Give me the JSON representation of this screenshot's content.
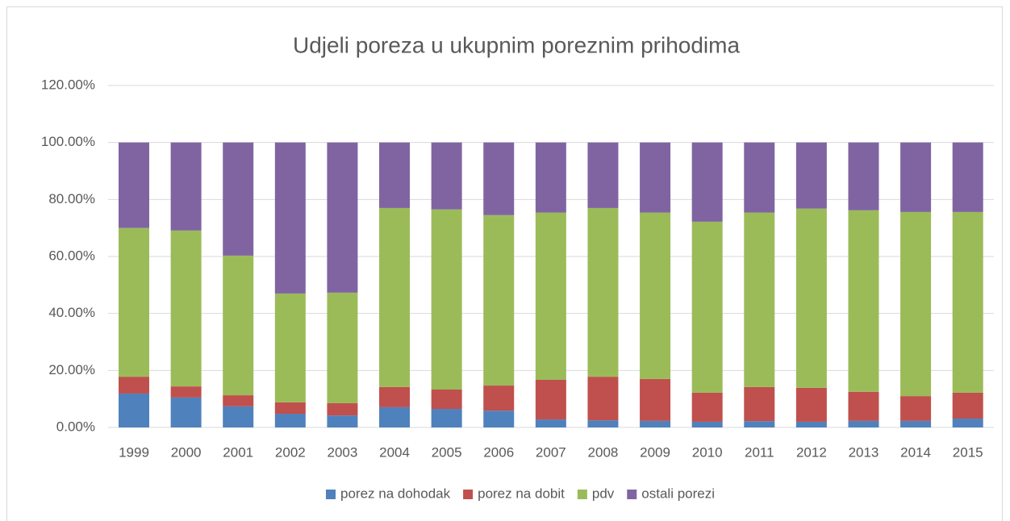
{
  "chart_data": {
    "type": "stacked_bar",
    "title": "Udjeli poreza u ukupnim poreznim prihodima",
    "categories": [
      "1999",
      "2000",
      "2001",
      "2002",
      "2003",
      "2004",
      "2005",
      "2006",
      "2007",
      "2008",
      "2009",
      "2010",
      "2011",
      "2012",
      "2013",
      "2014",
      "2015"
    ],
    "series": [
      {
        "name": "porez na dohodak",
        "color": "#4f81bd",
        "values": [
          11.9,
          10.5,
          7.4,
          4.8,
          4.2,
          7.1,
          6.5,
          5.9,
          2.8,
          2.5,
          2.3,
          2.0,
          2.2,
          2.0,
          2.3,
          2.3,
          3.1
        ]
      },
      {
        "name": "porez na dobit",
        "color": "#c0504d",
        "values": [
          5.9,
          3.9,
          3.9,
          4.0,
          4.3,
          7.1,
          6.8,
          8.8,
          13.9,
          15.3,
          14.7,
          10.2,
          12.0,
          11.9,
          10.2,
          8.7,
          9.1
        ]
      },
      {
        "name": "pdv",
        "color": "#9bbb59",
        "values": [
          52.2,
          54.7,
          49.0,
          38.2,
          38.8,
          62.8,
          63.2,
          59.8,
          58.7,
          59.2,
          58.4,
          60.0,
          61.2,
          62.9,
          63.7,
          64.6,
          63.4
        ]
      },
      {
        "name": "ostali porezi",
        "color": "#8064a2",
        "values": [
          30.0,
          30.9,
          39.7,
          53.0,
          52.7,
          23.0,
          23.5,
          25.5,
          24.6,
          23.0,
          24.6,
          27.8,
          24.6,
          23.2,
          23.8,
          24.4,
          24.4
        ]
      }
    ],
    "ylim": [
      0,
      120
    ],
    "yticks": [
      {
        "value": 0,
        "label": "0.00%"
      },
      {
        "value": 20,
        "label": "20.00%"
      },
      {
        "value": 40,
        "label": "40.00%"
      },
      {
        "value": 60,
        "label": "60.00%"
      },
      {
        "value": 80,
        "label": "80.00%"
      },
      {
        "value": 100,
        "label": "100.00%"
      },
      {
        "value": 120,
        "label": "120.00%"
      }
    ],
    "grid": true,
    "legend": "bottom"
  }
}
